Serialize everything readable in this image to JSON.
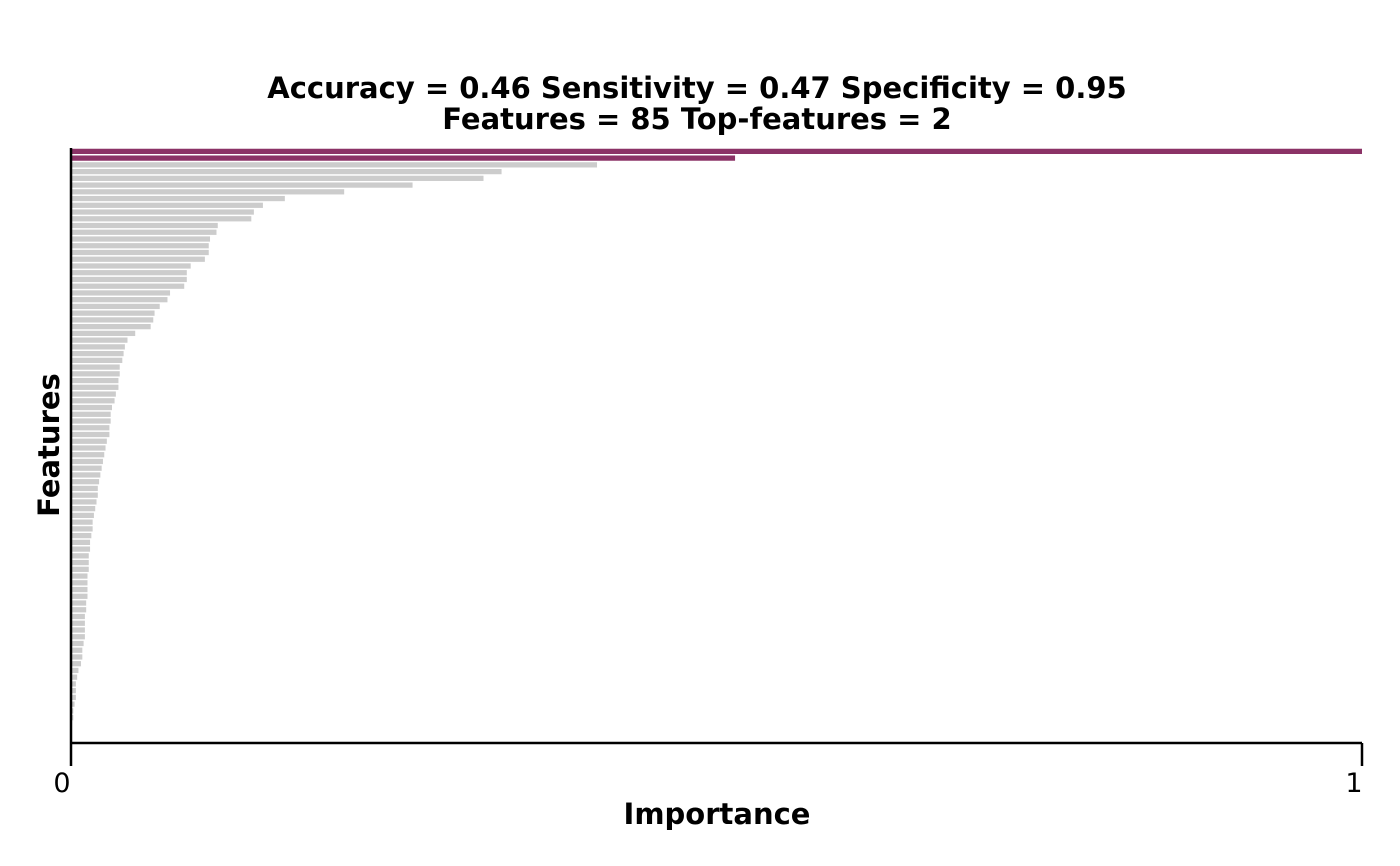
{
  "chart_data": {
    "type": "bar",
    "orientation": "horizontal",
    "title_line1": "Accuracy = 0.46    Sensitivity = 0.47    Specificity = 0.95",
    "title_line2": "Features = 85    Top-features = 2",
    "xlabel": "Importance",
    "ylabel": "Features",
    "xlim": [
      0,
      1
    ],
    "x_ticks": [
      "0",
      "1"
    ],
    "grid": false,
    "legend": "none",
    "colors": {
      "top": "#8b3266",
      "other": "#cccccc",
      "axis": "#000000"
    },
    "top_feature_count": 2,
    "values": [
      1.0,
      0.514,
      0.407,
      0.333,
      0.319,
      0.264,
      0.211,
      0.165,
      0.148,
      0.141,
      0.139,
      0.113,
      0.112,
      0.107,
      0.106,
      0.106,
      0.103,
      0.092,
      0.089,
      0.089,
      0.087,
      0.076,
      0.074,
      0.068,
      0.064,
      0.063,
      0.061,
      0.049,
      0.043,
      0.041,
      0.04,
      0.039,
      0.037,
      0.037,
      0.036,
      0.036,
      0.034,
      0.033,
      0.031,
      0.03,
      0.03,
      0.029,
      0.029,
      0.027,
      0.026,
      0.025,
      0.024,
      0.023,
      0.022,
      0.021,
      0.02,
      0.02,
      0.019,
      0.018,
      0.017,
      0.016,
      0.016,
      0.015,
      0.014,
      0.014,
      0.013,
      0.013,
      0.013,
      0.012,
      0.012,
      0.012,
      0.012,
      0.011,
      0.011,
      0.01,
      0.01,
      0.01,
      0.01,
      0.009,
      0.008,
      0.008,
      0.007,
      0.005,
      0.004,
      0.003,
      0.003,
      0.003,
      0.002,
      0.001,
      0.001
    ]
  }
}
